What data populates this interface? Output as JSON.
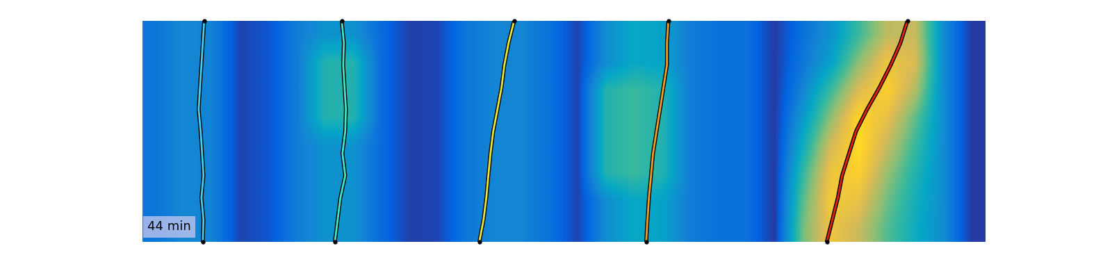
{
  "chart_data": {
    "type": "heatmap",
    "annotation": "44 min",
    "xlim": [
      0,
      100
    ],
    "ylim": [
      100,
      0
    ],
    "tick_labels": false,
    "clim": [
      0,
      100
    ],
    "cells": [
      [
        20,
        26,
        24,
        6,
        10,
        22,
        30,
        30,
        16,
        5,
        6,
        20,
        25,
        25,
        18,
        6,
        28,
        38,
        36,
        22,
        18,
        18,
        4,
        18,
        30,
        50,
        70,
        72,
        28,
        4
      ],
      [
        20,
        26,
        24,
        6,
        10,
        22,
        45,
        45,
        16,
        5,
        6,
        20,
        25,
        25,
        18,
        6,
        28,
        38,
        36,
        22,
        18,
        18,
        4,
        20,
        35,
        62,
        82,
        76,
        28,
        4
      ],
      [
        20,
        26,
        24,
        6,
        10,
        22,
        45,
        45,
        16,
        5,
        6,
        20,
        25,
        25,
        18,
        6,
        45,
        50,
        45,
        22,
        18,
        18,
        4,
        25,
        50,
        76,
        88,
        68,
        28,
        4
      ],
      [
        20,
        26,
        24,
        6,
        10,
        22,
        45,
        45,
        16,
        5,
        6,
        20,
        25,
        25,
        18,
        6,
        45,
        50,
        45,
        22,
        18,
        18,
        4,
        32,
        62,
        90,
        80,
        56,
        28,
        4
      ],
      [
        20,
        26,
        24,
        6,
        10,
        22,
        30,
        30,
        16,
        5,
        6,
        20,
        25,
        25,
        18,
        6,
        45,
        50,
        45,
        22,
        18,
        18,
        4,
        40,
        74,
        92,
        72,
        50,
        28,
        4
      ],
      [
        20,
        26,
        24,
        6,
        10,
        22,
        30,
        30,
        16,
        5,
        6,
        20,
        25,
        25,
        18,
        6,
        45,
        50,
        45,
        22,
        18,
        18,
        4,
        48,
        82,
        88,
        64,
        45,
        28,
        4
      ],
      [
        20,
        26,
        24,
        6,
        10,
        22,
        30,
        30,
        16,
        5,
        6,
        20,
        25,
        25,
        18,
        6,
        28,
        38,
        36,
        22,
        18,
        18,
        4,
        54,
        85,
        80,
        58,
        42,
        28,
        4
      ],
      [
        20,
        26,
        24,
        6,
        10,
        22,
        30,
        30,
        16,
        5,
        6,
        20,
        25,
        25,
        18,
        6,
        28,
        38,
        36,
        22,
        18,
        18,
        4,
        58,
        82,
        72,
        54,
        40,
        28,
        4
      ]
    ],
    "tracks": [
      {
        "color": "#40d0f0",
        "line_style": "solid",
        "x": [
          7.34,
          7.17,
          7.01,
          6.84,
          6.68,
          6.92,
          7.09,
          7.25,
          7.01,
          7.25,
          7.17
        ],
        "y": [
          0,
          10,
          20,
          30,
          40,
          50,
          60,
          70,
          80,
          90,
          100
        ]
      },
      {
        "color": "#40e8c8",
        "line_style": "solid",
        "x": [
          23.66,
          23.91,
          23.83,
          23.99,
          24.15,
          24.07,
          23.74,
          24.07,
          23.5,
          23.17,
          22.84
        ],
        "y": [
          0,
          10,
          20,
          30,
          40,
          50,
          60,
          70,
          80,
          90,
          100
        ]
      },
      {
        "color": "#e8e830",
        "line_style": "solid",
        "x": [
          44.11,
          43.45,
          42.95,
          42.62,
          42.13,
          41.63,
          41.3,
          41.05,
          40.81,
          40.48,
          39.98
        ],
        "y": [
          0,
          10,
          20,
          30,
          40,
          50,
          60,
          70,
          80,
          90,
          100
        ]
      },
      {
        "color": "#f0a020",
        "line_style": "solid",
        "x": [
          62.41,
          62.24,
          62.24,
          61.83,
          61.42,
          61.0,
          60.59,
          60.35,
          60.1,
          59.93,
          59.77
        ],
        "y": [
          0,
          10,
          20,
          30,
          40,
          50,
          60,
          70,
          80,
          90,
          100
        ]
      },
      {
        "color": "#e02010",
        "line_style": "solid",
        "x": [
          90.77,
          89.94,
          88.79,
          87.47,
          85.99,
          84.67,
          83.84,
          83.02,
          82.52,
          81.86,
          81.2
        ],
        "y": [
          0,
          10,
          20,
          30,
          40,
          50,
          60,
          70,
          80,
          90,
          100
        ]
      }
    ]
  }
}
